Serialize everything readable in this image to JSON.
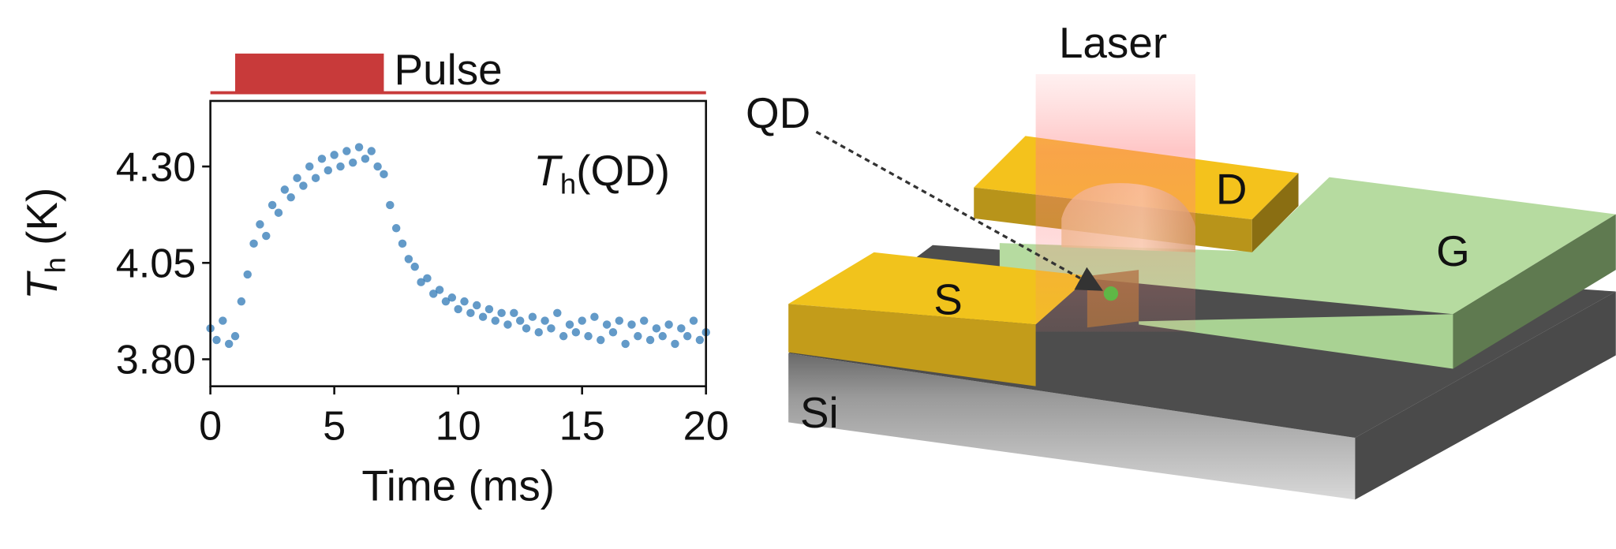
{
  "chart_data": {
    "type": "scatter",
    "annotation": {
      "symbol": "T",
      "subscript": "h",
      "rest": "(QD)"
    },
    "x_label": "Time (ms)",
    "y_label": {
      "symbol": "T",
      "subscript": "h",
      "rest": " (K)"
    },
    "pulse": {
      "label": "Pulse",
      "start": 1,
      "end": 7,
      "color": "#c83a3a"
    },
    "color": "#2f78b5",
    "xlim": [
      0,
      20
    ],
    "xticks": [
      0,
      5,
      10,
      15,
      20
    ],
    "ylim": [
      3.73,
      4.47
    ],
    "yticks": [
      {
        "value": 4.3,
        "label": "4.30"
      },
      4.05,
      {
        "value": 3.8,
        "label": "3.80"
      }
    ],
    "x": [
      0,
      0.25,
      0.5,
      0.75,
      1,
      1.25,
      1.5,
      1.75,
      2,
      2.25,
      2.5,
      2.75,
      3,
      3.25,
      3.5,
      3.75,
      4,
      4.25,
      4.5,
      4.75,
      5,
      5.25,
      5.5,
      5.75,
      6,
      6.25,
      6.5,
      6.75,
      7,
      7.25,
      7.5,
      7.75,
      8,
      8.25,
      8.5,
      8.75,
      9,
      9.25,
      9.5,
      9.75,
      10,
      10.25,
      10.5,
      10.75,
      11,
      11.25,
      11.5,
      11.75,
      12,
      12.25,
      12.5,
      12.75,
      13,
      13.25,
      13.5,
      13.75,
      14,
      14.25,
      14.5,
      14.75,
      15,
      15.25,
      15.5,
      15.75,
      16,
      16.25,
      16.5,
      16.75,
      17,
      17.25,
      17.5,
      17.75,
      18,
      18.25,
      18.5,
      18.75,
      19,
      19.25,
      19.5,
      19.75,
      20
    ],
    "values": [
      3.88,
      3.85,
      3.9,
      3.84,
      3.86,
      3.95,
      4.02,
      4.1,
      4.15,
      4.12,
      4.2,
      4.18,
      4.24,
      4.22,
      4.27,
      4.25,
      4.3,
      4.27,
      4.32,
      4.29,
      4.33,
      4.3,
      4.34,
      4.31,
      4.35,
      4.32,
      4.34,
      4.3,
      4.28,
      4.2,
      4.14,
      4.1,
      4.06,
      4.04,
      4.0,
      4.01,
      3.97,
      3.98,
      3.95,
      3.96,
      3.93,
      3.95,
      3.92,
      3.94,
      3.91,
      3.93,
      3.9,
      3.92,
      3.89,
      3.92,
      3.9,
      3.88,
      3.91,
      3.87,
      3.9,
      3.88,
      3.92,
      3.86,
      3.89,
      3.87,
      3.9,
      3.86,
      3.91,
      3.85,
      3.89,
      3.87,
      3.9,
      3.84,
      3.89,
      3.86,
      3.9,
      3.85,
      3.88,
      3.86,
      3.89,
      3.84,
      3.88,
      3.86,
      3.9,
      3.85,
      3.87
    ]
  },
  "diagram": {
    "laser": "Laser",
    "qd": "QD",
    "drain": "D",
    "source": "S",
    "gate": "G",
    "substrate": "Si"
  }
}
